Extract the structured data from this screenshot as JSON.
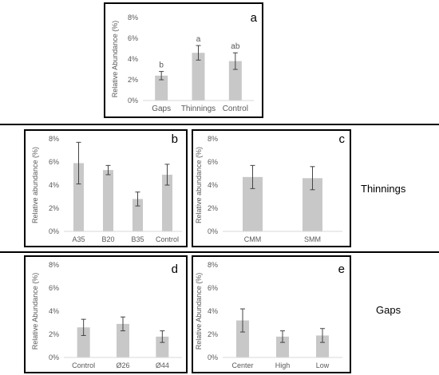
{
  "chart_data": [
    {
      "id": "a",
      "type": "bar",
      "panel_label": "a",
      "ylabel": "Relative Abundance (%)",
      "yticks": [
        "0%",
        "2%",
        "4%",
        "6%",
        "8%"
      ],
      "ylim": [
        0,
        8
      ],
      "grid": false,
      "categories": [
        "Gaps",
        "Thinnings",
        "Control"
      ],
      "values": [
        2.4,
        4.6,
        3.8
      ],
      "errors": [
        0.4,
        0.7,
        0.8
      ],
      "letters": [
        "b",
        "a",
        "ab"
      ]
    },
    {
      "id": "b",
      "type": "bar",
      "panel_label": "b",
      "ylabel": "Relative abundance (%)",
      "yticks": [
        "0%",
        "2%",
        "4%",
        "6%",
        "8%"
      ],
      "ylim": [
        0,
        8
      ],
      "grid": false,
      "categories": [
        "A35",
        "B20",
        "B35",
        "Control"
      ],
      "values": [
        5.9,
        5.3,
        2.8,
        4.9
      ],
      "errors": [
        1.8,
        0.4,
        0.6,
        0.9
      ]
    },
    {
      "id": "c",
      "type": "bar",
      "panel_label": "c",
      "ylabel": "Relative abundance (%)",
      "yticks": [
        "0%",
        "2%",
        "4%",
        "6%",
        "8%"
      ],
      "ylim": [
        0,
        8
      ],
      "grid": false,
      "categories": [
        "CMM",
        "SMM"
      ],
      "values": [
        4.7,
        4.6
      ],
      "errors": [
        1.0,
        1.0
      ]
    },
    {
      "id": "d",
      "type": "bar",
      "panel_label": "d",
      "ylabel": "Relative Abundance (%)",
      "yticks": [
        "0%",
        "2%",
        "4%",
        "6%",
        "8%"
      ],
      "ylim": [
        0,
        8
      ],
      "grid": false,
      "categories": [
        "Control",
        "Ø26",
        "Ø44"
      ],
      "values": [
        2.6,
        2.9,
        1.8
      ],
      "errors": [
        0.7,
        0.6,
        0.5
      ]
    },
    {
      "id": "e",
      "type": "bar",
      "panel_label": "e",
      "ylabel": "Relative Abundance (%)",
      "yticks": [
        "0%",
        "2%",
        "4%",
        "6%",
        "8%"
      ],
      "ylim": [
        0,
        8
      ],
      "grid": false,
      "categories": [
        "Center",
        "High",
        "Low"
      ],
      "values": [
        3.2,
        1.8,
        1.9
      ],
      "errors": [
        1.0,
        0.5,
        0.6
      ]
    }
  ],
  "group_labels": {
    "thinnings": "Thinnings",
    "gaps": "Gaps"
  },
  "colors": {
    "bar": "#c8c8c8",
    "axis": "#d9d9d9",
    "tick_text": "#595959",
    "error": "#444444"
  }
}
